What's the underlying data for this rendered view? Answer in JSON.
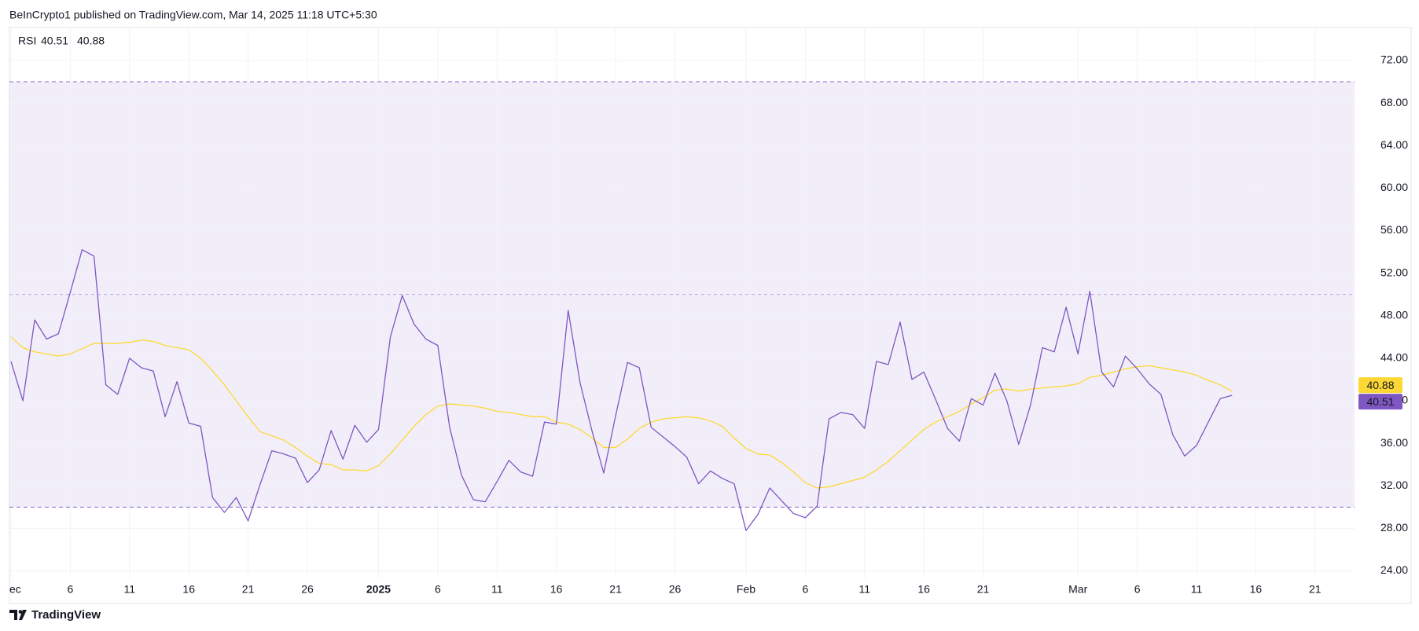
{
  "header": "BeInCrypto1 published on TradingView.com, Mar 14, 2025 11:18 UTC+5:30",
  "footer": "TradingView",
  "chart_data": {
    "type": "line",
    "indicator": "RSI",
    "categories": [
      "ec",
      null,
      null,
      null,
      null,
      "6",
      null,
      null,
      null,
      null,
      "11",
      null,
      null,
      null,
      null,
      "16",
      null,
      null,
      null,
      null,
      "21",
      null,
      null,
      null,
      null,
      "26",
      null,
      null,
      null,
      null,
      null,
      "2025",
      null,
      null,
      null,
      null,
      "6",
      null,
      null,
      null,
      null,
      "11",
      null,
      null,
      null,
      null,
      "16",
      null,
      null,
      null,
      null,
      "21",
      null,
      null,
      null,
      null,
      "26",
      null,
      null,
      null,
      null,
      null,
      "Feb",
      null,
      null,
      null,
      null,
      "6",
      null,
      null,
      null,
      null,
      "11",
      null,
      null,
      null,
      null,
      "16",
      null,
      null,
      null,
      null,
      "21",
      null,
      null,
      null,
      null,
      null,
      null,
      null,
      "Mar",
      null,
      null,
      null,
      null,
      "6",
      null,
      null,
      null,
      null,
      "11",
      null,
      null,
      null,
      null,
      "16",
      null,
      null,
      null,
      null,
      "21",
      null,
      null,
      null
    ],
    "series": [
      {
        "color": "#7e57c2",
        "values": [
          43.7,
          40.0,
          47.6,
          45.8,
          46.3,
          50.2,
          54.2,
          53.6,
          41.5,
          40.6,
          44.0,
          43.1,
          42.8,
          38.5,
          41.8,
          37.9,
          37.6,
          30.9,
          29.5,
          30.9,
          28.7,
          32.1,
          35.3,
          35.0,
          34.6,
          32.3,
          33.5,
          37.2,
          34.5,
          37.7,
          36.1,
          37.3,
          46.0,
          49.9,
          47.2,
          45.8,
          45.2,
          37.5,
          33.0,
          30.7,
          30.5,
          32.4,
          34.4,
          33.3,
          32.9,
          38.0,
          37.8,
          48.5,
          41.7,
          37.2,
          33.2,
          38.6,
          43.6,
          43.1,
          37.5,
          36.6,
          35.7,
          34.7,
          32.2,
          33.4,
          32.7,
          32.2,
          27.8,
          29.3,
          31.8,
          30.6,
          29.4,
          29.0,
          30.1,
          38.3,
          38.9,
          38.7,
          37.4,
          43.7,
          43.4,
          47.4,
          42.0,
          42.7,
          40.1,
          37.4,
          36.2,
          40.2,
          39.6,
          42.6,
          40.0,
          35.9,
          39.6,
          45.0,
          44.6,
          48.8,
          44.4,
          50.3,
          42.7,
          41.3,
          44.2,
          43.0,
          41.6,
          40.6,
          36.8,
          34.8,
          35.8,
          38.0,
          40.2,
          40.51,
          null,
          null,
          null,
          null,
          null,
          null,
          null,
          null,
          null,
          null
        ]
      },
      {
        "color": "#fdd835",
        "values": [
          46.0,
          45.0,
          44.6,
          44.4,
          44.2,
          44.4,
          44.9,
          45.4,
          45.4,
          45.4,
          45.5,
          45.7,
          45.6,
          45.2,
          45.0,
          44.8,
          44.0,
          42.8,
          41.5,
          40.0,
          38.5,
          37.1,
          36.7,
          36.3,
          35.6,
          34.8,
          34.1,
          34.0,
          33.5,
          33.5,
          33.4,
          33.9,
          35.0,
          36.3,
          37.6,
          38.7,
          39.5,
          39.7,
          39.6,
          39.5,
          39.3,
          39.0,
          38.9,
          38.7,
          38.5,
          38.5,
          38.0,
          37.8,
          37.3,
          36.5,
          35.6,
          35.6,
          36.4,
          37.4,
          38.0,
          38.3,
          38.4,
          38.5,
          38.4,
          38.1,
          37.6,
          36.5,
          35.5,
          35.0,
          34.9,
          34.2,
          33.3,
          32.3,
          31.8,
          31.9,
          32.2,
          32.5,
          32.8,
          33.5,
          34.3,
          35.3,
          36.3,
          37.3,
          38.0,
          38.5,
          39.0,
          39.7,
          40.3,
          41.0,
          41.1,
          40.9,
          41.1,
          41.2,
          41.3,
          41.4,
          41.6,
          42.2,
          42.4,
          42.7,
          43.0,
          43.2,
          43.3,
          43.1,
          42.9,
          42.7,
          42.4,
          41.9,
          41.5,
          40.88,
          null,
          null,
          null,
          null,
          null,
          null,
          null,
          null,
          null,
          null
        ]
      }
    ],
    "ylim": [
      23.3,
      75.1
    ],
    "yticks": [
      {
        "value": 24,
        "label": "24.00"
      },
      {
        "value": 28,
        "label": "28.00"
      },
      {
        "value": 32,
        "label": "32.00"
      },
      {
        "value": 36,
        "label": "36.00"
      },
      {
        "value": 40,
        "label": "40.00"
      },
      {
        "value": 44,
        "label": "44.00"
      },
      {
        "value": 48,
        "label": "48.00"
      },
      {
        "value": 52,
        "label": "52.00"
      },
      {
        "value": 56,
        "label": "56.00"
      },
      {
        "value": 60,
        "label": "60.00"
      },
      {
        "value": 64,
        "label": "64.00"
      },
      {
        "value": 68,
        "label": "68.00"
      },
      {
        "value": 72,
        "label": "72.00"
      }
    ],
    "bands": [
      70,
      50,
      30
    ],
    "band_color": "#7e57c2",
    "grid": true
  }
}
